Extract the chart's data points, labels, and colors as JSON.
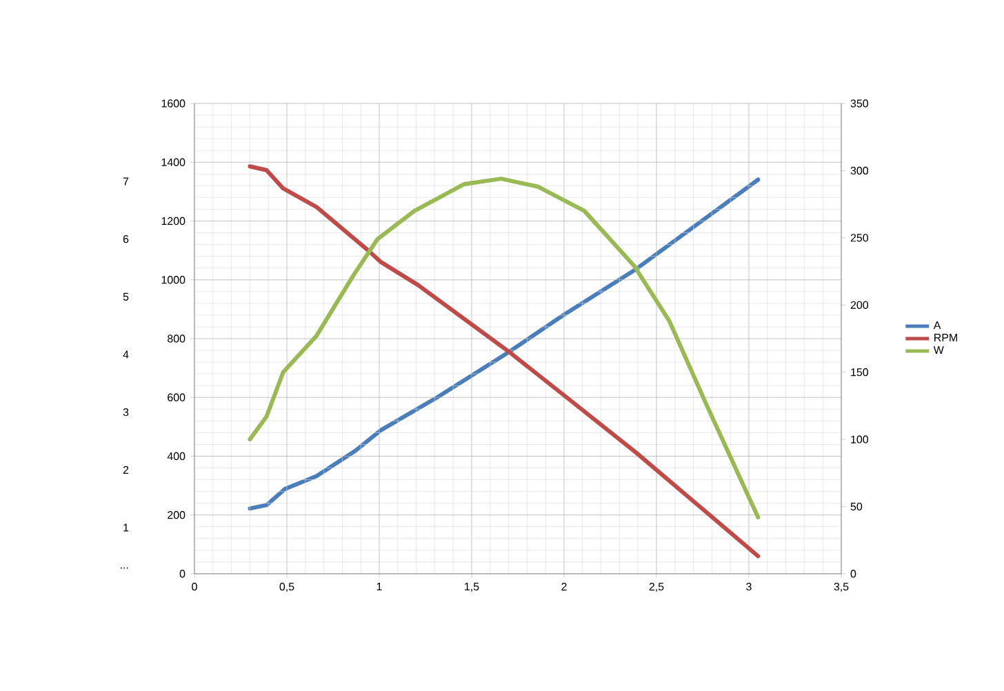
{
  "chart_data": {
    "type": "line",
    "xlim": [
      0,
      3.5
    ],
    "xticks": [
      0,
      {
        "value": 0.5,
        "label": "0,5"
      },
      1,
      {
        "value": 1.5,
        "label": "1,5"
      },
      2,
      {
        "value": 2.5,
        "label": "2,5"
      },
      3,
      {
        "value": 3.5,
        "label": "3,5"
      }
    ],
    "ylim": [
      0,
      1600
    ],
    "yticks": [
      0,
      200,
      400,
      600,
      800,
      1000,
      1200,
      1400,
      1600
    ],
    "y2lim": [
      0,
      350
    ],
    "y2ticks": [
      0,
      50,
      100,
      150,
      200,
      250,
      300,
      350
    ],
    "y3lim": [
      0.2,
      8.35
    ],
    "y3ticks": [
      {
        "value": 0.3,
        "label": "..."
      },
      1,
      2,
      3,
      4,
      5,
      6,
      7
    ],
    "grid": true,
    "legend": "right",
    "marker": "none",
    "line_style": "solid",
    "series": [
      {
        "name": "A",
        "color": "#4a7ebb",
        "axis": "y3",
        "x": [
          0.3,
          0.39,
          0.49,
          0.66,
          0.87,
          1.01,
          1.16,
          1.31,
          1.7,
          2.0,
          2.39,
          3.05
        ],
        "values": [
          1.33,
          1.39,
          1.67,
          1.89,
          2.33,
          2.69,
          2.97,
          3.25,
          4.04,
          4.69,
          5.48,
          7.03
        ]
      },
      {
        "name": "RPM",
        "color": "#be4b48",
        "x": [
          0.3,
          0.39,
          0.48,
          0.66,
          0.94,
          1.01,
          1.21,
          1.7,
          2.0,
          2.39,
          3.05
        ],
        "values": [
          1386,
          1373,
          1311,
          1248,
          1100,
          1060,
          982,
          756,
          607,
          412,
          60
        ]
      },
      {
        "name": "W",
        "color": "#98b954",
        "axis": "y2",
        "x": [
          0.3,
          0.39,
          0.48,
          0.66,
          0.86,
          0.99,
          1.19,
          1.46,
          1.66,
          1.86,
          2.11,
          2.38,
          2.57,
          2.77,
          3.05
        ],
        "values": [
          100,
          117,
          150,
          177,
          222,
          249,
          270,
          290,
          294,
          288,
          270,
          229,
          188,
          126,
          42
        ]
      }
    ]
  }
}
